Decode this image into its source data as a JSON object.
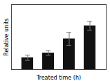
{
  "chart_data": {
    "type": "bar",
    "xlabel": "Treated time (h)",
    "ylabel": "Relative units",
    "categories": [
      null,
      null,
      null,
      null
    ],
    "values": [
      1.0,
      1.4,
      2.6,
      3.7
    ],
    "errors": [
      0.22,
      0.2,
      0.55,
      0.38
    ],
    "color": "#111111",
    "ylim": [
      0,
      5.5
    ],
    "yticks": [],
    "tick_labels": false
  }
}
